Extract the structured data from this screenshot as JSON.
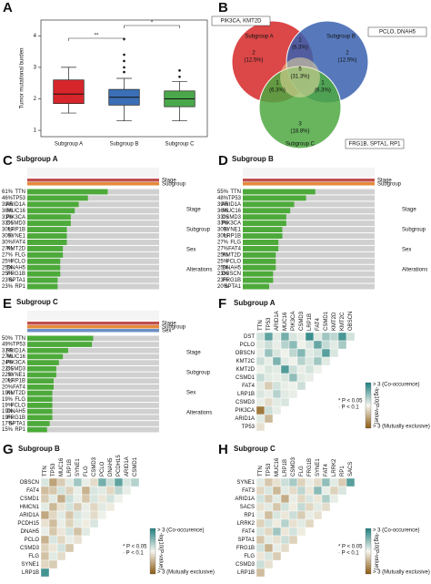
{
  "chart_data": [
    {
      "type": "box",
      "panel": "A",
      "ylabel": "Tumor mutational burden",
      "categories": [
        "Subgroup A",
        "Subgroup B",
        "Subgroup C"
      ],
      "series": [
        {
          "name": "Subgroup A",
          "color": "#d7262b",
          "min": 1.55,
          "q1": 1.85,
          "median": 2.15,
          "q3": 2.6,
          "max": 3.0,
          "outliers": []
        },
        {
          "name": "Subgroup B",
          "color": "#3b6fb6",
          "min": 1.3,
          "q1": 1.8,
          "median": 2.05,
          "q3": 2.3,
          "max": 2.65,
          "outliers": [
            2.85,
            3.0,
            3.2,
            3.4,
            3.9
          ]
        },
        {
          "name": "Subgroup C",
          "color": "#4aa84a",
          "min": 1.3,
          "q1": 1.75,
          "median": 2.0,
          "q3": 2.25,
          "max": 2.55,
          "outliers": [
            2.7,
            2.9
          ]
        }
      ],
      "significance": [
        "**",
        "*"
      ],
      "ylim": [
        0.8,
        4.5
      ],
      "yticks": [
        1,
        2,
        3,
        4
      ]
    },
    {
      "type": "venn",
      "panel": "B",
      "sets": [
        {
          "name": "Subgroup A",
          "color": "#d62728"
        },
        {
          "name": "Subgroup B",
          "color": "#3a62b0"
        },
        {
          "name": "Subgroup C",
          "color": "#4ea842"
        }
      ],
      "regions": [
        "A",
        "B",
        "C",
        "AB",
        "AC",
        "BC",
        "ABC"
      ],
      "values": [
        2,
        2,
        3,
        1,
        1,
        1,
        5
      ],
      "percents": [
        12.5,
        12.5,
        18.8,
        6.3,
        6.3,
        6.3,
        31.3
      ],
      "percent_labels": [
        "(12.5%)",
        "(12.5%)",
        "(18.8%)",
        "(6.3%)",
        "(6.3%)",
        "(6.3%)",
        "(31.3%)"
      ],
      "annotations": [
        "PIK3CA, KMT2D",
        "PCLO, DNAH5",
        "FRG1B, SPTA1, RP1"
      ]
    },
    {
      "type": "oncoprint",
      "panel": "C",
      "title": "Subgroup A",
      "tracks": [
        "Stage",
        "Subgroup"
      ],
      "legend_titles": [
        "Stage",
        "Subgroup",
        "Sex",
        "Alterations"
      ],
      "color": "#4daa3a",
      "genes": [
        "TTN",
        "TP53",
        "ARID1A",
        "MUC16",
        "PIK3CA",
        "CSMD3",
        "LRP1B",
        "SYNE1",
        "FAT4",
        "KMT2D",
        "FLG",
        "PCLO",
        "DNAH5",
        "FRG1B",
        "SPTA1",
        "RP1"
      ],
      "values": [
        61,
        46,
        39,
        36,
        33,
        33,
        30,
        30,
        30,
        27,
        27,
        25,
        25,
        25,
        23,
        23
      ],
      "value_labels": [
        "61%",
        "46%",
        "39%",
        "36%",
        "33%",
        "33%",
        "30%",
        "30%",
        "30%",
        "27%",
        "27%",
        "25%",
        "25%",
        "25%",
        "23%",
        "23%"
      ]
    },
    {
      "type": "oncoprint",
      "panel": "D",
      "title": "Subgroup B",
      "tracks": [
        "Stage",
        "Subgroup"
      ],
      "legend_titles": [
        "Stage",
        "Subgroup",
        "Sex",
        "Alterations"
      ],
      "color": "#4daa3a",
      "genes": [
        "TTN",
        "TP53",
        "ARID1A",
        "MUC16",
        "CSMD3",
        "PIK3CA",
        "SYNE1",
        "LRP1B",
        "FLG",
        "FAT4",
        "KMT2D",
        "PCLO",
        "DNAH5",
        "OBSCN",
        "FRG1B",
        "SPTA1"
      ],
      "values": [
        55,
        48,
        39,
        36,
        33,
        33,
        30,
        30,
        27,
        27,
        25,
        25,
        25,
        23,
        23,
        20
      ],
      "value_labels": [
        "55%",
        "48%",
        "39%",
        "36%",
        "33%",
        "33%",
        "30%",
        "30%",
        "27%",
        "27%",
        "25%",
        "25%",
        "25%",
        "23%",
        "23%",
        "20%"
      ]
    },
    {
      "type": "oncoprint",
      "panel": "E",
      "title": "Subgroup C",
      "tracks": [
        "Stage",
        "Subgroup",
        "Sex"
      ],
      "legend_titles": [
        "Stage",
        "Subgroup",
        "Sex",
        "Alterations"
      ],
      "color": "#4daa3a",
      "genes": [
        "TTN",
        "TP53",
        "ARID1A",
        "MUC16",
        "PIK3CA",
        "CSMD3",
        "SYNE1",
        "LRP1B",
        "FAT4",
        "KMT2D",
        "FLG",
        "PCLO",
        "DNAH5",
        "FRG1B",
        "SPTA1",
        "RP1"
      ],
      "values": [
        50,
        49,
        31,
        27,
        24,
        22,
        22,
        20,
        20,
        19,
        19,
        19,
        19,
        19,
        17,
        15
      ],
      "value_labels": [
        "50%",
        "49%",
        "31%",
        "27%",
        "24%",
        "22%",
        "22%",
        "20%",
        "20%",
        "19%",
        "19%",
        "19%",
        "19%",
        "19%",
        "17%",
        "15%"
      ]
    },
    {
      "type": "heatmap",
      "panel": "F",
      "title": "Subgroup A",
      "columns": [
        "TTN",
        "TP53",
        "ARID1A",
        "MUC16",
        "PIK3CA",
        "CSMD3",
        "LRP1B",
        "FAT4",
        "CSMD1",
        "KMT2D",
        "KMT2C",
        "OBSCN"
      ],
      "rows": [
        "DST",
        "PCLO",
        "OBSCN",
        "KMT2C",
        "KMT2D",
        "CSMD1",
        "FAT4",
        "LRP1B",
        "CSMD3",
        "PIK3CA",
        "ARID1A",
        "TP53"
      ],
      "values": [
        [
          0.5,
          2.1,
          0.3,
          1.8,
          0.4,
          0.2,
          2.6,
          0.3,
          1.2,
          0.8,
          2.4,
          0.5
        ],
        [
          0.3,
          0.6,
          0.2,
          0.9,
          1.5,
          0.1,
          0.4,
          2.0,
          0.7,
          0.3,
          1.1
        ],
        [
          0.2,
          1.3,
          0.4,
          0.1,
          0.8,
          1.6,
          0.3,
          0.5,
          2.2,
          0.4
        ],
        [
          0.6,
          0.2,
          1.7,
          0.3,
          0.1,
          0.9,
          0.4,
          1.2,
          0.3
        ],
        [
          0.1,
          0.4,
          0.3,
          2.3,
          0.6,
          0.2,
          0.5,
          0.1
        ],
        [
          0.7,
          0.3,
          0.2,
          0.4,
          1.4,
          0.3,
          0.2
        ],
        [
          0.3,
          -0.8,
          0.5,
          0.2,
          0.1,
          0.6
        ],
        [
          0.4,
          0.2,
          0.9,
          0.3,
          0.2
        ],
        [
          0.2,
          -0.5,
          0.3,
          0.4
        ],
        [
          -2.4,
          0.6,
          0.2
        ],
        [
          0.3,
          -1.2
        ],
        [
          -0.4
        ]
      ],
      "clim": [
        -3,
        3
      ],
      "colors": [
        "#8b5a13",
        "#1f7f7f"
      ],
      "legend": [
        "* P < 0.05",
        "· P < 0.1",
        "-log10(P-value)",
        "> 3 (Co-occurence)",
        "> 3 (Mutually exclusive)"
      ]
    },
    {
      "type": "heatmap",
      "panel": "G",
      "title": "Subgroup B",
      "columns": [
        "TTN",
        "TP53",
        "MUC16",
        "LRP1B",
        "SYNE1",
        "FLG",
        "CSMD3",
        "PCLO",
        "DNAH5",
        "PCDH15",
        "ARID1A",
        "CSMD1"
      ],
      "rows": [
        "OBSCN",
        "FAT4",
        "CSMD1",
        "HMCN1",
        "ARID1A",
        "PCDH15",
        "DNAH5",
        "PCLO",
        "CSMD3",
        "FLG",
        "SYNE1",
        "LRP1B"
      ],
      "values": [
        [
          0.4,
          -1.6,
          -0.8,
          0.3,
          1.2,
          0.2,
          -0.5,
          1.8,
          0.6,
          2.1,
          0.4,
          0.9
        ],
        [
          -1.1,
          -0.9,
          0.5,
          -0.7,
          0.2,
          -1.3,
          0.4,
          0.3,
          -0.6,
          0.8,
          0.2
        ],
        [
          -0.8,
          0.3,
          -1.4,
          0.6,
          0.2,
          -0.9,
          0.4,
          -0.3,
          0.5,
          0.1
        ],
        [
          0.3,
          -1.2,
          -0.4,
          0.5,
          -0.8,
          0.2,
          -0.6,
          0.3,
          -0.2
        ],
        [
          -1.5,
          -0.6,
          0.3,
          -0.9,
          0.4,
          0.2,
          -0.5,
          0.1
        ],
        [
          -0.4,
          -1.1,
          0.2,
          -0.7,
          0.3,
          -0.2,
          0.4
        ],
        [
          0.2,
          -0.9,
          -0.3,
          0.5,
          -1.0,
          0.3
        ],
        [
          -1.3,
          0.4,
          -0.6,
          0.2,
          -0.4
        ],
        [
          -0.7,
          -0.3,
          0.5,
          -0.9
        ],
        [
          -1.0,
          0.3,
          -0.5
        ],
        [
          -0.6,
          -0.8
        ],
        [
          2.5
        ]
      ],
      "clim": [
        -3,
        3
      ],
      "colors": [
        "#8b5a13",
        "#1f7f7f"
      ],
      "legend": [
        "* P < 0.05",
        "· P < 0.1",
        "-log10(P-value)",
        "> 3 (Co-occurence)",
        "> 3 (Mutually exclusive)"
      ]
    },
    {
      "type": "heatmap",
      "panel": "H",
      "title": "Subgroup C",
      "columns": [
        "TTN",
        "TP53",
        "MUC16",
        "LRP1B",
        "CSMD3",
        "FLG",
        "FRG1B",
        "SYNE1",
        "FAT4",
        "LRRK2",
        "RP1",
        "SACS"
      ],
      "rows": [
        "SYNE1",
        "FAT3",
        "ARID1A",
        "SACS",
        "RP1",
        "LRRK2",
        "FAT4",
        "SPTA1",
        "FRG1B",
        "FLG",
        "CSMD3",
        "LRP1B"
      ],
      "values": [
        [
          0.3,
          -0.9,
          -0.4,
          0.6,
          1.1,
          -0.7,
          0.2,
          -0.5,
          1.4,
          0.3,
          -0.8,
          2.2
        ],
        [
          -0.6,
          0.4,
          -1.2,
          0.3,
          -0.5,
          0.8,
          -0.3,
          1.5,
          0.2,
          -0.7,
          0.4
        ],
        [
          0.5,
          -0.8,
          0.3,
          -1.4,
          0.2,
          -0.6,
          0.4,
          -0.3,
          1.0,
          0.2
        ],
        [
          -0.4,
          0.3,
          -0.9,
          0.5,
          -0.2,
          0.7,
          -0.6,
          0.3,
          -0.5
        ],
        [
          0.2,
          -1.1,
          0.4,
          -0.3,
          0.6,
          -0.8,
          0.2,
          -0.4
        ],
        [
          -0.7,
          0.5,
          -0.2,
          0.9,
          -0.4,
          0.3,
          -0.6
        ],
        [
          0.4,
          -0.6,
          1.2,
          -0.3,
          0.5,
          -0.2
        ],
        [
          -0.9,
          0.3,
          -0.4,
          0.6,
          -0.7
        ],
        [
          0.5,
          -1.3,
          0.2,
          -0.5
        ],
        [
          -0.3,
          0.4,
          -0.8
        ],
        [
          0.6,
          -0.4
        ],
        [
          -1.1
        ]
      ],
      "clim": [
        -3,
        3
      ],
      "colors": [
        "#8b5a13",
        "#1f7f7f"
      ],
      "legend": [
        "* P < 0.05",
        "· P < 0.1",
        "-log10(P-value)",
        "> 3 (Co-occurence)",
        "> 3 (Mutually exclusive)"
      ]
    }
  ]
}
